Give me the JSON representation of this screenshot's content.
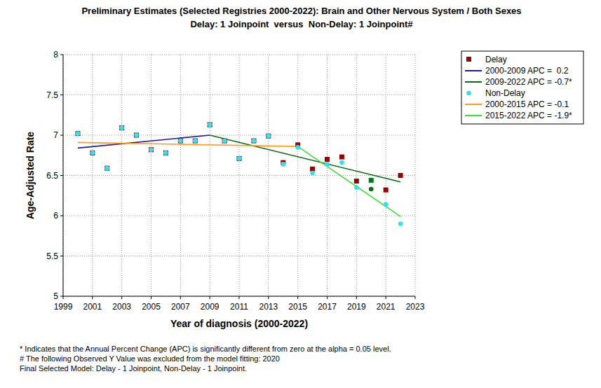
{
  "chart_data": {
    "type": "scatter",
    "title": "Preliminary Estimates (Selected Registries 2000-2022): Brain and Other Nervous System / Both Sexes",
    "subtitle": "Delay: 1 Joinpoint  versus  Non-Delay: 1 Joinpoint#",
    "x_label": "Year of diagnosis (2000-2022)",
    "y_label": "Age-Adjusted Rate",
    "notes": [
      "* Indicates that the Annual Percent Change (APC) is significantly different from zero at the alpha = 0.05 level.",
      "# The following Observed Y Value was excluded from the model fitting: 2020",
      "Final Selected Model: Delay - 1 Joinpoint, Non-Delay - 1 Joinpoint."
    ],
    "xlim": [
      1999,
      2023
    ],
    "xticks": [
      1999,
      2001,
      2003,
      2005,
      2007,
      2009,
      2011,
      2013,
      2015,
      2017,
      2019,
      2021,
      2023
    ],
    "ylim": [
      5,
      8
    ],
    "yticks": [
      5,
      5.5,
      6,
      6.5,
      7,
      7.5,
      8
    ],
    "grid": true,
    "legend": "outside-right",
    "series": [
      {
        "name": "Delay",
        "type": "scatter",
        "marker": "square",
        "color": "#990000",
        "colors": [
          "#990000",
          "#990000",
          "#990000",
          "#990000",
          "#990000",
          "#990000",
          "#990000",
          "#990000",
          "#990000",
          "#990000",
          "#990000",
          "#990000",
          "#990000",
          "#990000",
          "#990000",
          "#990000",
          "#990000",
          "#990000",
          "#990000",
          "#990000",
          "#007a1f",
          "#990000",
          "#990000"
        ],
        "x": [
          2000,
          2001,
          2002,
          2003,
          2004,
          2005,
          2006,
          2007,
          2008,
          2009,
          2010,
          2011,
          2012,
          2013,
          2014,
          2015,
          2016,
          2017,
          2018,
          2019,
          2020,
          2021,
          2022
        ],
        "values": [
          7.02,
          6.78,
          6.59,
          7.09,
          7.0,
          6.82,
          6.78,
          6.93,
          6.93,
          7.13,
          6.93,
          6.71,
          6.93,
          6.99,
          6.66,
          6.88,
          6.58,
          6.7,
          6.73,
          6.43,
          6.44,
          6.32,
          6.5
        ]
      },
      {
        "name": "2000-2009 APC =  0.2",
        "type": "line",
        "line_style": "solid",
        "color": "#1a1aa8",
        "x": [
          2000,
          2009
        ],
        "values": [
          6.84,
          7.0
        ]
      },
      {
        "name": "2009-2022 APC = -0.7*",
        "type": "line",
        "line_style": "solid",
        "color": "#0b6b16",
        "x": [
          2009,
          2022
        ],
        "values": [
          7.0,
          6.42
        ]
      },
      {
        "name": "Non-Delay",
        "type": "scatter",
        "marker": "circle",
        "color": "#33e0ee",
        "colors": [
          "#33e0ee",
          "#33e0ee",
          "#33e0ee",
          "#33e0ee",
          "#33e0ee",
          "#33e0ee",
          "#33e0ee",
          "#33e0ee",
          "#33e0ee",
          "#33e0ee",
          "#33e0ee",
          "#33e0ee",
          "#33e0ee",
          "#33e0ee",
          "#33e0ee",
          "#33e0ee",
          "#33e0ee",
          "#33e0ee",
          "#33e0ee",
          "#33e0ee",
          "#0b6b16",
          "#33e0ee",
          "#33e0ee"
        ],
        "x": [
          2000,
          2001,
          2002,
          2003,
          2004,
          2005,
          2006,
          2007,
          2008,
          2009,
          2010,
          2011,
          2012,
          2013,
          2014,
          2015,
          2016,
          2017,
          2018,
          2019,
          2020,
          2021,
          2022
        ],
        "values": [
          7.02,
          6.78,
          6.59,
          7.09,
          7.0,
          6.82,
          6.78,
          6.93,
          6.93,
          7.13,
          6.93,
          6.71,
          6.93,
          6.99,
          6.64,
          6.85,
          6.53,
          6.64,
          6.66,
          6.35,
          6.33,
          6.14,
          5.9
        ]
      },
      {
        "name": "2000-2015 APC = -0.1",
        "type": "line",
        "line_style": "solid",
        "color": "#ff9a1a",
        "x": [
          2000,
          2015
        ],
        "values": [
          6.91,
          6.86
        ]
      },
      {
        "name": "2015-2022 APC = -1.9*",
        "type": "line",
        "line_style": "solid",
        "color": "#3ede3e",
        "x": [
          2015,
          2022
        ],
        "values": [
          6.86,
          5.99
        ]
      }
    ]
  }
}
